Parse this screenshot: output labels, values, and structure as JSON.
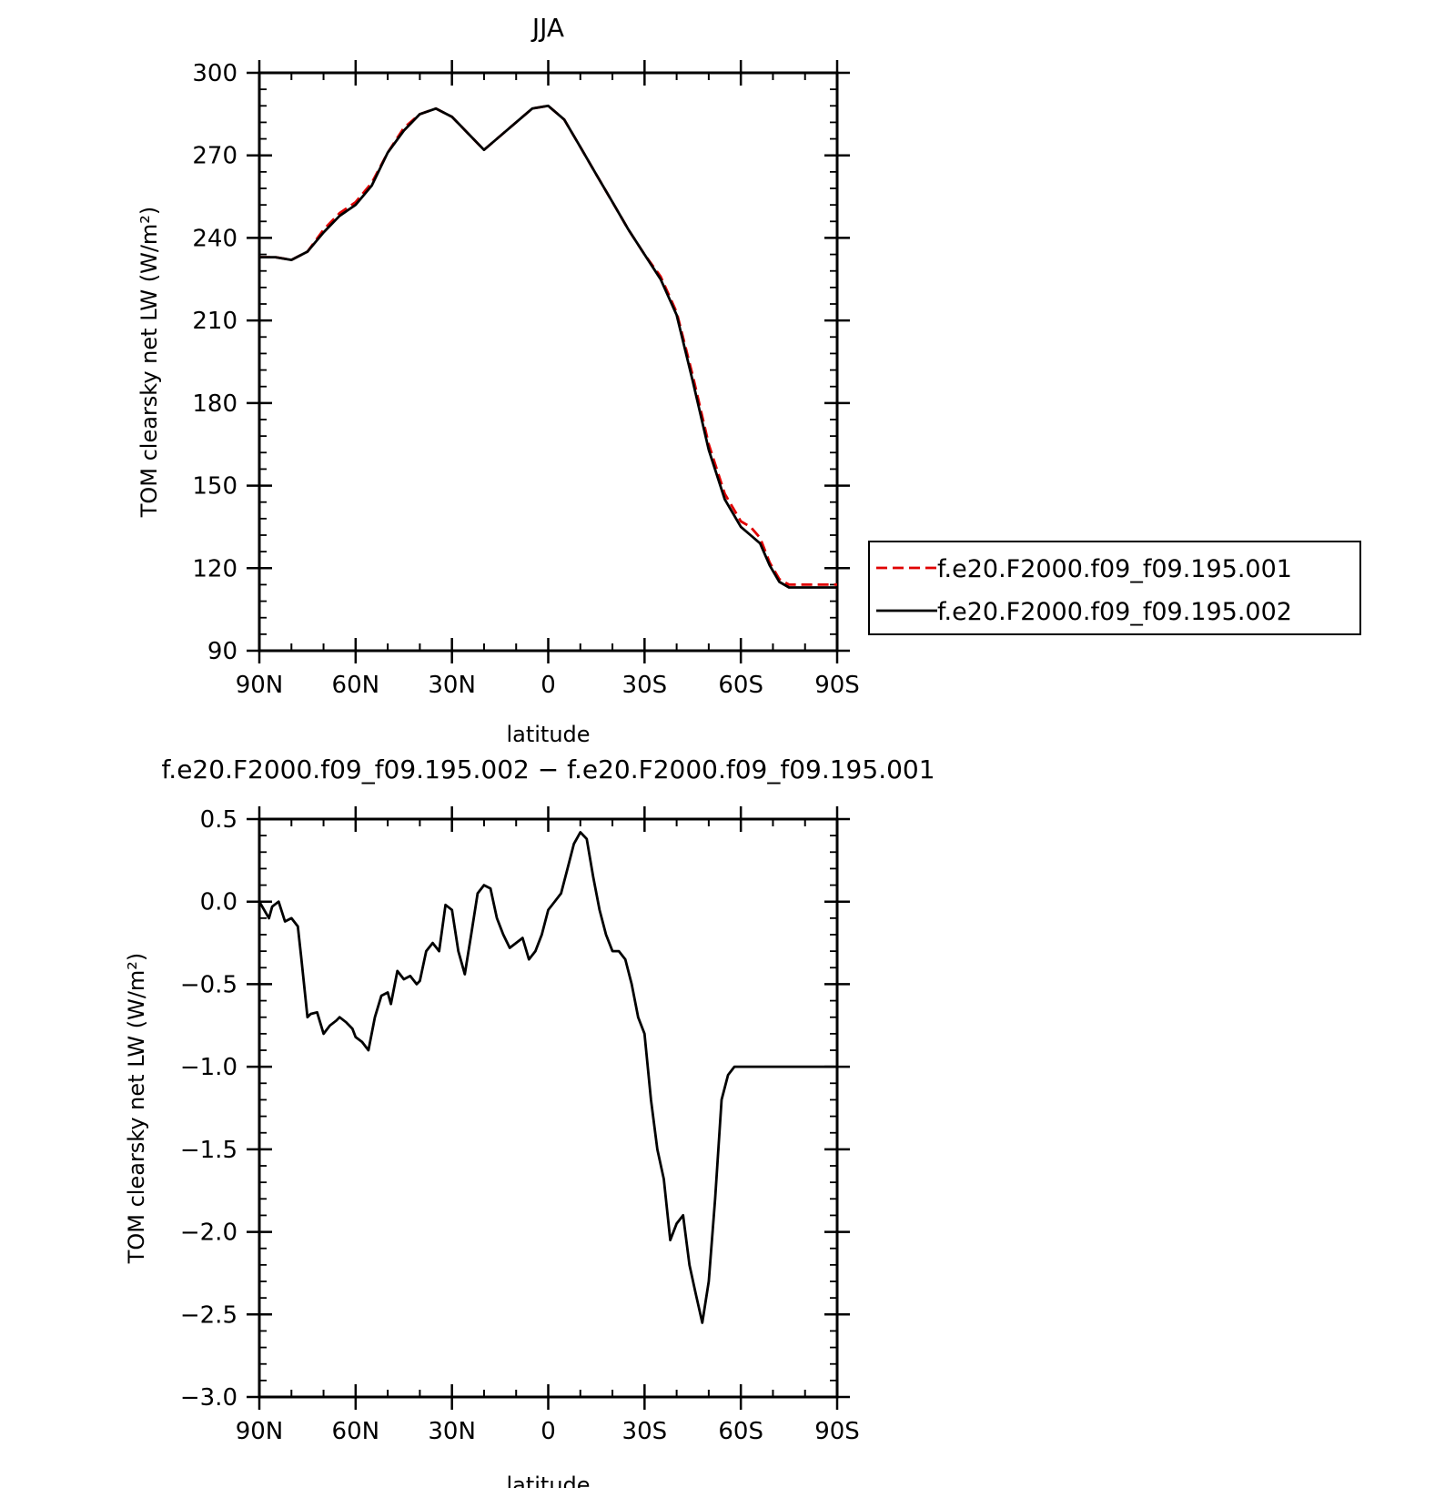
{
  "chart_data": [
    {
      "type": "line",
      "title": "JJA",
      "xlabel": "latitude",
      "ylabel": "TOM clearsky net LW (W/m²)",
      "xlim": [
        90,
        -90
      ],
      "ylim": [
        90,
        300
      ],
      "xtick_values": [
        90,
        60,
        30,
        0,
        -30,
        -60,
        -90
      ],
      "xtick_labels": [
        "90N",
        "60N",
        "30N",
        "0",
        "30S",
        "60S",
        "90S"
      ],
      "ytick_values": [
        90,
        120,
        150,
        180,
        210,
        240,
        270,
        300
      ],
      "ytick_labels": [
        "90",
        "120",
        "150",
        "180",
        "210",
        "240",
        "270",
        "300"
      ],
      "legend": "right",
      "series": [
        {
          "name": "f.e20.F2000.f09_f09.195.001",
          "color": "#e00000",
          "dash": true,
          "x": [
            90,
            85,
            80,
            75,
            70,
            65,
            60,
            55,
            50,
            45,
            40,
            35,
            30,
            25,
            20,
            15,
            10,
            5,
            0,
            -5,
            -10,
            -15,
            -20,
            -25,
            -30,
            -35,
            -40,
            -45,
            -50,
            -55,
            -60,
            -63,
            -66,
            -69,
            -72,
            -75,
            -78,
            -80,
            -83,
            -86,
            -88,
            -90
          ],
          "y": [
            233,
            233,
            232,
            235,
            243,
            249,
            253,
            260,
            271,
            280,
            285,
            287,
            284,
            278,
            272,
            277,
            282,
            287,
            288,
            283,
            273,
            263,
            253,
            243,
            234,
            226,
            213,
            190,
            165,
            147,
            137,
            135,
            131,
            122,
            116,
            114,
            114,
            114,
            114,
            114,
            114,
            114
          ]
        },
        {
          "name": "f.e20.F2000.f09_f09.195.002",
          "color": "#000000",
          "dash": false,
          "x": [
            90,
            85,
            80,
            75,
            70,
            65,
            60,
            55,
            50,
            45,
            40,
            35,
            30,
            25,
            20,
            15,
            10,
            5,
            0,
            -5,
            -10,
            -15,
            -20,
            -25,
            -30,
            -35,
            -40,
            -45,
            -50,
            -55,
            -60,
            -63,
            -66,
            -69,
            -72,
            -75,
            -78,
            -80,
            -83,
            -86,
            -88,
            -90
          ],
          "y": [
            233,
            233,
            232,
            235,
            242,
            248,
            252,
            259,
            271,
            279,
            285,
            287,
            284,
            278,
            272,
            277,
            282,
            287,
            288,
            283,
            273,
            263,
            253,
            243,
            234,
            225,
            212,
            188,
            163,
            145,
            135,
            132,
            129,
            121,
            115,
            113,
            113,
            113,
            113,
            113,
            113,
            113
          ]
        }
      ]
    },
    {
      "type": "line",
      "title": "f.e20.F2000.f09_f09.195.002 − f.e20.F2000.f09_f09.195.001",
      "xlabel": "latitude",
      "ylabel": "TOM clearsky net LW (W/m²)",
      "xlim": [
        90,
        -90
      ],
      "ylim": [
        -3.0,
        0.5
      ],
      "xtick_values": [
        90,
        60,
        30,
        0,
        -30,
        -60,
        -90
      ],
      "xtick_labels": [
        "90N",
        "60N",
        "30N",
        "0",
        "30S",
        "60S",
        "90S"
      ],
      "ytick_values": [
        0.5,
        0.0,
        -0.5,
        -1.0,
        -1.5,
        -2.0,
        -2.5,
        -3.0
      ],
      "ytick_labels": [
        "0.5",
        "0.0",
        "−0.5",
        "−1.0",
        "−1.5",
        "−2.0",
        "−2.5",
        "−3.0"
      ],
      "series": [
        {
          "color": "#000000",
          "x": [
            90,
            87,
            86,
            84,
            82,
            80,
            78,
            77,
            75,
            74,
            72,
            70,
            68,
            66,
            65,
            63,
            61,
            60,
            58,
            56,
            54,
            52,
            50,
            49,
            47,
            45,
            43,
            41,
            40,
            38,
            36,
            34,
            32,
            30,
            28,
            26,
            24,
            22,
            20,
            18,
            16,
            14,
            12,
            10,
            8,
            6,
            4,
            2,
            0,
            -2,
            -4,
            -6,
            -8,
            -10,
            -12,
            -14,
            -16,
            -18,
            -20,
            -22,
            -24,
            -26,
            -28,
            -30,
            -32,
            -34,
            -36,
            -38,
            -40,
            -42,
            -44,
            -46,
            -48,
            -50,
            -52,
            -54,
            -56,
            -58,
            -60,
            -62,
            -64,
            -66,
            -68,
            -70,
            -72,
            -74,
            -76,
            -78,
            -80,
            -82,
            -83,
            -85,
            -87,
            -88,
            -90
          ],
          "y": [
            0.0,
            -0.1,
            -0.03,
            0.0,
            -0.12,
            -0.1,
            -0.15,
            -0.33,
            -0.7,
            -0.68,
            -0.67,
            -0.8,
            -0.75,
            -0.72,
            -0.7,
            -0.73,
            -0.77,
            -0.82,
            -0.85,
            -0.9,
            -0.7,
            -0.57,
            -0.55,
            -0.62,
            -0.42,
            -0.47,
            -0.45,
            -0.5,
            -0.48,
            -0.3,
            -0.25,
            -0.3,
            -0.02,
            -0.05,
            -0.3,
            -0.44,
            -0.2,
            0.05,
            0.1,
            0.08,
            -0.1,
            -0.2,
            -0.28,
            -0.25,
            -0.22,
            -0.35,
            -0.3,
            -0.2,
            -0.05,
            0.0,
            0.05,
            0.2,
            0.35,
            0.42,
            0.38,
            0.15,
            -0.05,
            -0.2,
            -0.3,
            -0.3,
            -0.35,
            -0.5,
            -0.7,
            -0.8,
            -1.2,
            -1.5,
            -1.68,
            -2.05,
            -1.95,
            -1.9,
            -2.2,
            -2.38,
            -2.55,
            -2.3,
            -1.8,
            -1.2,
            -1.05,
            -1.0,
            -1.0,
            -1.0,
            -1.0,
            -1.0,
            -1.0,
            -1.0,
            -1.0,
            -1.0,
            -1.0,
            -1.0,
            -1.0,
            -1.0,
            -1.0,
            -1.0,
            -1.0,
            -1.0,
            -1.0
          ]
        }
      ]
    }
  ]
}
